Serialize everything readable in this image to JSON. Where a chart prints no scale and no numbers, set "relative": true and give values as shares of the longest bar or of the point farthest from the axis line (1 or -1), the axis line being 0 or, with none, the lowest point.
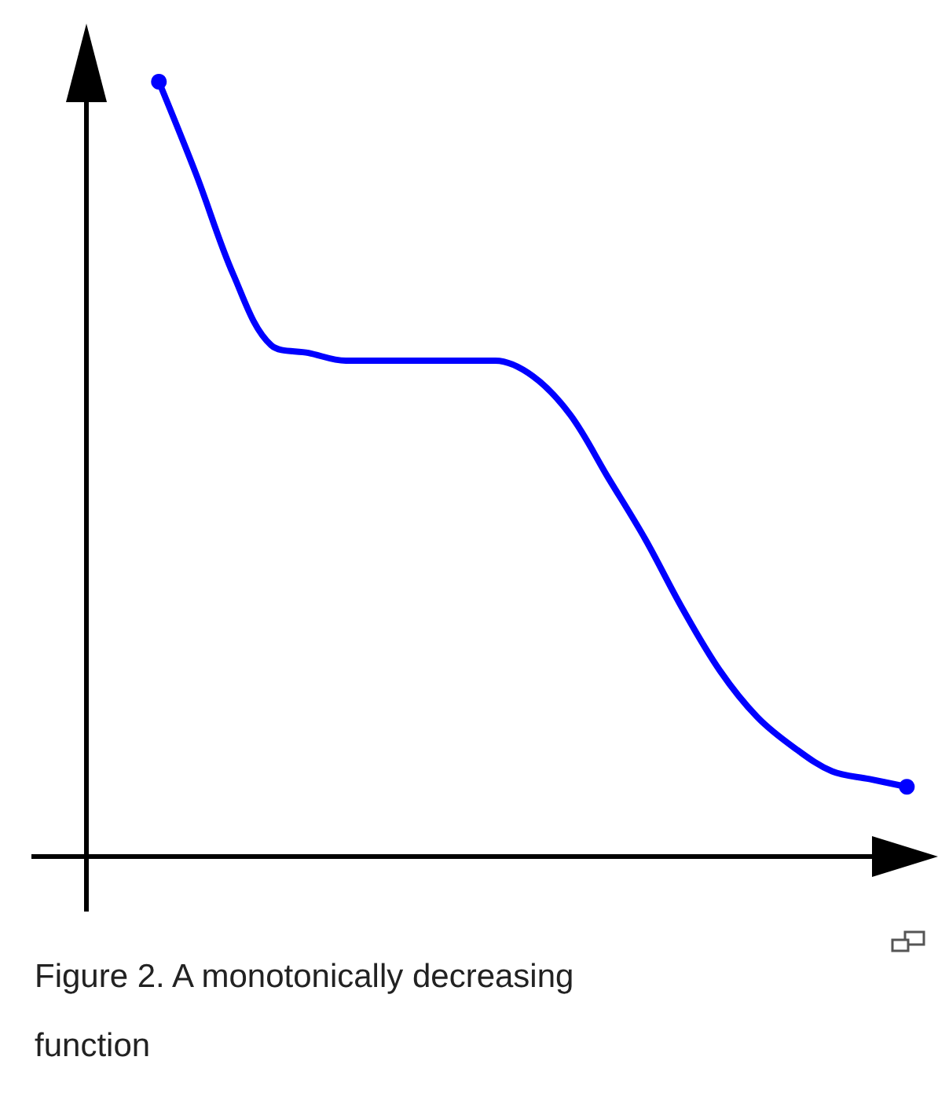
{
  "chart_data": {
    "type": "line",
    "relative": true,
    "categories": [
      null,
      null,
      null,
      null,
      null,
      null,
      null,
      null,
      null,
      null,
      null,
      null,
      null,
      null,
      null,
      null,
      null,
      null,
      null,
      null,
      null
    ],
    "series": [
      {
        "color": "#0000ff",
        "values": [
          1,
          0.88,
          0.75,
          0.66,
          0.65,
          0.64,
          0.64,
          0.64,
          0.64,
          0.64,
          0.62,
          0.57,
          0.49,
          0.41,
          0.32,
          0.24,
          0.18,
          0.14,
          0.11,
          0.1,
          0.09
        ]
      }
    ],
    "grid": false,
    "annotations": [
      "Figure 2. A monotonically decreasing function"
    ]
  }
}
